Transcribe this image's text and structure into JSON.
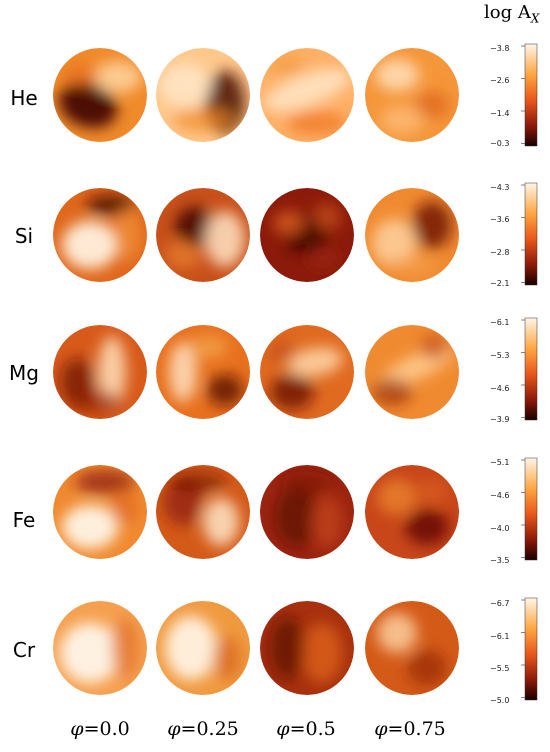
{
  "colorbar_title": {
    "text": "log A",
    "subscript": "X"
  },
  "phases": [
    "0.0",
    "0.25",
    "0.5",
    "0.75"
  ],
  "phase_symbol": "φ=",
  "elements": [
    {
      "label": "He",
      "ticks": [
        "−3.8",
        "−2.6",
        "−1.4",
        "−0.3"
      ]
    },
    {
      "label": "Si",
      "ticks": [
        "−4.3",
        "−3.6",
        "−2.8",
        "−2.1"
      ]
    },
    {
      "label": "Mg",
      "ticks": [
        "−6.1",
        "−5.3",
        "−4.6",
        "−3.9"
      ]
    },
    {
      "label": "Fe",
      "ticks": [
        "−5.1",
        "−4.6",
        "−4.0",
        "−3.5"
      ]
    },
    {
      "label": "Cr",
      "ticks": [
        "−6.7",
        "−6.1",
        "−5.5",
        "−5.0"
      ]
    }
  ],
  "colormap": {
    "low": "#fff5e8",
    "mid1": "#ffa640",
    "mid2": "#e8571a",
    "mid3": "#8c1a0a",
    "high": "#1a0000"
  }
}
